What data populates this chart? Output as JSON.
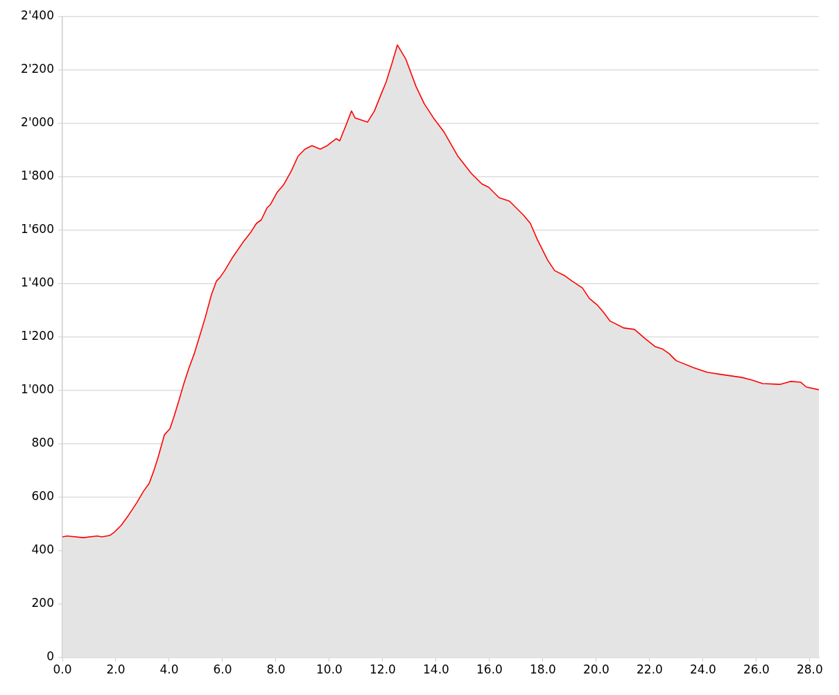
{
  "chart_data": {
    "type": "area",
    "legend": false,
    "grid": "y",
    "marker": "none",
    "xlim": [
      0,
      28.34
    ],
    "ylim": [
      0,
      2400
    ],
    "xticks": [
      {
        "value": 0,
        "label": "0.0"
      },
      {
        "value": 2,
        "label": "2.0"
      },
      {
        "value": 4,
        "label": "4.0"
      },
      {
        "value": 6,
        "label": "6.0"
      },
      {
        "value": 8,
        "label": "8.0"
      },
      {
        "value": 10,
        "label": "10.0"
      },
      {
        "value": 12,
        "label": "12.0"
      },
      {
        "value": 14,
        "label": "14.0"
      },
      {
        "value": 16,
        "label": "16.0"
      },
      {
        "value": 18,
        "label": "18.0"
      },
      {
        "value": 20,
        "label": "20.0"
      },
      {
        "value": 22,
        "label": "22.0"
      },
      {
        "value": 24,
        "label": "24.0"
      },
      {
        "value": 26,
        "label": "26.0"
      },
      {
        "value": 28,
        "label": "28.0"
      }
    ],
    "yticks": [
      0,
      200,
      400,
      600,
      800,
      {
        "value": 1000,
        "label": "1'000"
      },
      {
        "value": 1200,
        "label": "1'200"
      },
      {
        "value": 1400,
        "label": "1'400"
      },
      {
        "value": 1600,
        "label": "1'600"
      },
      {
        "value": 1800,
        "label": "1'800"
      },
      {
        "value": 2000,
        "label": "2'000"
      },
      {
        "value": 2200,
        "label": "2'200"
      },
      {
        "value": 2400,
        "label": "2'400"
      }
    ],
    "series": [
      {
        "color": "#ff0000",
        "x": [
          0,
          0.18,
          0.78,
          1.3,
          1.48,
          1.77,
          1.95,
          2.21,
          2.47,
          2.78,
          3.04,
          3.25,
          3.43,
          3.58,
          3.82,
          4.03,
          4.21,
          4.36,
          4.55,
          4.73,
          4.94,
          5.14,
          5.35,
          5.58,
          5.77,
          5.9,
          6.08,
          6.36,
          6.75,
          7.04,
          7.27,
          7.45,
          7.66,
          7.79,
          8.05,
          8.29,
          8.57,
          8.83,
          9.09,
          9.35,
          9.66,
          9.92,
          10.26,
          10.39,
          10.65,
          10.83,
          10.96,
          11.43,
          11.69,
          11.95,
          12.13,
          12.34,
          12.55,
          12.86,
          13.25,
          13.56,
          13.9,
          14.29,
          14.81,
          15.32,
          15.71,
          15.97,
          16.36,
          16.75,
          17.27,
          17.53,
          17.79,
          18.18,
          18.44,
          18.83,
          19.09,
          19.48,
          19.74,
          20.05,
          20.26,
          20.52,
          21.04,
          21.43,
          21.82,
          22.21,
          22.47,
          22.73,
          22.99,
          23.64,
          24.16,
          24.68,
          25.45,
          25.84,
          26.23,
          26.88,
          27.27,
          27.66,
          27.87,
          28.34
        ],
        "values": [
          452,
          455,
          449,
          455,
          452,
          457,
          470,
          496,
          532,
          579,
          623,
          652,
          701,
          748,
          834,
          857,
          912,
          961,
          1026,
          1081,
          1138,
          1203,
          1273,
          1358,
          1410,
          1423,
          1449,
          1496,
          1553,
          1590,
          1626,
          1639,
          1683,
          1696,
          1743,
          1771,
          1821,
          1878,
          1904,
          1917,
          1904,
          1917,
          1943,
          1935,
          2000,
          2047,
          2021,
          2005,
          2047,
          2112,
          2156,
          2223,
          2294,
          2242,
          2138,
          2073,
          2021,
          1969,
          1878,
          1813,
          1774,
          1761,
          1722,
          1709,
          1657,
          1626,
          1566,
          1488,
          1449,
          1429,
          1410,
          1384,
          1345,
          1319,
          1294,
          1260,
          1234,
          1229,
          1195,
          1164,
          1156,
          1138,
          1112,
          1086,
          1068,
          1060,
          1049,
          1039,
          1026,
          1023,
          1034,
          1031,
          1013,
          1003
        ]
      }
    ]
  }
}
